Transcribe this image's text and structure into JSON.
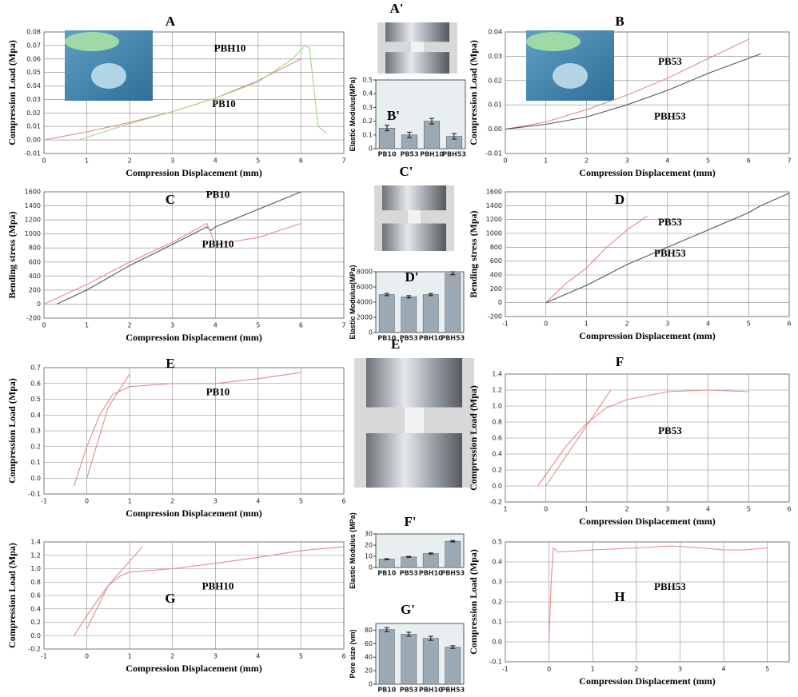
{
  "chart_data": [
    {
      "type": "line",
      "title": "A",
      "xlabel": "Compression Displacement (mm)",
      "ylabel": "Compression Load (Mpa)",
      "xlim": [
        0,
        7
      ],
      "xticks": [
        0,
        1,
        2,
        3,
        4,
        5,
        6,
        7
      ],
      "ylim": [
        -0.01,
        0.08
      ],
      "yticks": [
        -0.01,
        {
          "value": 0,
          "label": "0.00"
        },
        0.01,
        0.02,
        0.03,
        0.04,
        0.05,
        0.06,
        0.07,
        0.08
      ],
      "grid": true,
      "annotations": [
        "PBH10",
        "PB10"
      ],
      "series": [
        {
          "color": "#e58a8a",
          "x": [
            0,
            1,
            2,
            3,
            4,
            5,
            6
          ],
          "values": [
            0,
            0.006,
            0.013,
            0.021,
            0.031,
            0.044,
            0.06
          ]
        },
        {
          "color": "#9fd58f",
          "x": [
            0.8,
            2,
            3,
            4,
            5,
            5.8,
            6.1,
            6.2,
            6.4,
            6.6
          ],
          "values": [
            0,
            0.012,
            0.021,
            0.031,
            0.043,
            0.06,
            0.07,
            0.068,
            0.01,
            0.005
          ]
        }
      ]
    },
    {
      "type": "image",
      "title": "A'"
    },
    {
      "type": "line",
      "title": "B",
      "xlabel": "Compression Displacement (mm)",
      "ylabel": "Compression Load (Mpa)",
      "xlim": [
        0,
        7
      ],
      "xticks": [
        0,
        1,
        2,
        3,
        4,
        5,
        6,
        7
      ],
      "ylim": [
        -0.01,
        0.04
      ],
      "yticks": [
        -0.01,
        {
          "value": 0,
          "label": "0.00"
        },
        0.01,
        0.02,
        0.03,
        0.04
      ],
      "grid": true,
      "annotations": [
        "PB53",
        "PBH53"
      ],
      "series": [
        {
          "color": "#e58a8a",
          "x": [
            0,
            1,
            2,
            3,
            4,
            5,
            6
          ],
          "values": [
            0,
            0.003,
            0.008,
            0.014,
            0.021,
            0.029,
            0.037
          ]
        },
        {
          "color": "#555555",
          "x": [
            0,
            1,
            2,
            3,
            4,
            5,
            6.3
          ],
          "values": [
            0,
            0.002,
            0.005,
            0.01,
            0.016,
            0.023,
            0.031
          ]
        }
      ]
    },
    {
      "type": "bar",
      "title": "B'",
      "ylabel": "Elastic Modulus(MPa)",
      "categories": [
        "PB10",
        "PB53",
        "PBH10",
        "PBH53"
      ],
      "values": [
        0.15,
        0.1,
        0.2,
        0.09
      ],
      "errors": [
        0.02,
        0.02,
        0.02,
        0.02
      ],
      "color": "#9aa9b3",
      "ylim": [
        0,
        0.5
      ],
      "yticks": [
        0,
        0.1,
        0.2,
        0.3,
        0.4,
        0.5
      ]
    },
    {
      "type": "line",
      "title": "C",
      "xlabel": "Compression Displacement (mm)",
      "ylabel": "Bending stress (Mpa)",
      "xlim": [
        0,
        7
      ],
      "xticks": [
        0,
        1,
        2,
        3,
        4,
        5,
        6,
        7
      ],
      "ylim": [
        -200,
        1600
      ],
      "yticks": [
        -200,
        0,
        200,
        400,
        600,
        800,
        1000,
        1200,
        1400,
        1600
      ],
      "grid": true,
      "annotations": [
        "PB10",
        "PBH10"
      ],
      "series": [
        {
          "color": "#555555",
          "x": [
            0.3,
            1,
            2,
            3,
            3.8,
            3.9,
            4,
            5,
            6
          ],
          "values": [
            0,
            200,
            550,
            850,
            1100,
            1050,
            1100,
            1350,
            1600
          ]
        },
        {
          "color": "#e58a8a",
          "x": [
            0,
            1,
            2,
            3,
            3.8,
            4,
            5,
            6
          ],
          "values": [
            0,
            280,
            600,
            880,
            1150,
            850,
            950,
            1150
          ]
        }
      ]
    },
    {
      "type": "image",
      "title": "C'"
    },
    {
      "type": "line",
      "title": "D",
      "xlabel": "Compression Displacement (mm)",
      "ylabel": "Bending stress (Mpa)",
      "xlim": [
        -1,
        6
      ],
      "xticks": [
        -1,
        0,
        1,
        2,
        3,
        4,
        5,
        6
      ],
      "ylim": [
        -200,
        1600
      ],
      "yticks": [
        -200,
        0,
        200,
        400,
        600,
        800,
        1000,
        1200,
        1400,
        1600
      ],
      "grid": true,
      "annotations": [
        "PB53",
        "PBH53"
      ],
      "series": [
        {
          "color": "#e58a8a",
          "x": [
            0,
            0.5,
            1,
            1.5,
            2,
            2.5
          ],
          "values": [
            0,
            280,
            500,
            800,
            1050,
            1250
          ]
        },
        {
          "color": "#555555",
          "x": [
            0,
            1,
            2,
            3,
            4,
            5,
            5.3,
            6
          ],
          "values": [
            0,
            250,
            550,
            800,
            1050,
            1300,
            1400,
            1580
          ]
        }
      ]
    },
    {
      "type": "bar",
      "title": "D'",
      "ylabel": "Elastic Modulus(MPa)",
      "categories": [
        "PB10",
        "PB53",
        "PBH10",
        "PBH53"
      ],
      "values": [
        5000,
        4700,
        5000,
        7800
      ],
      "errors": [
        150,
        150,
        150,
        200
      ],
      "color": "#9aa9b3",
      "ylim": [
        0,
        8000
      ],
      "yticks": [
        0,
        2000,
        4000,
        6000,
        8000
      ]
    },
    {
      "type": "line",
      "title": "E",
      "xlabel": "Compression Displacement (mm)",
      "ylabel": "Compression Load (Mpa)",
      "xlim": [
        -1,
        6
      ],
      "xticks": [
        -1,
        0,
        1,
        2,
        3,
        4,
        5,
        6
      ],
      "ylim": [
        -0.1,
        0.7
      ],
      "yticks": [
        -0.1,
        {
          "value": 0,
          "label": "0.0"
        },
        0.1,
        0.2,
        0.3,
        0.4,
        0.5,
        0.6,
        0.7
      ],
      "grid": true,
      "annotations": [
        "PB10"
      ],
      "series": [
        {
          "color": "#e58a8a",
          "x": [
            -0.3,
            0,
            0.3,
            0.6,
            1,
            2,
            3,
            4,
            5
          ],
          "values": [
            -0.05,
            0.2,
            0.4,
            0.53,
            0.58,
            0.6,
            0.6,
            0.63,
            0.67
          ]
        },
        {
          "color": "#e58a8a",
          "x": [
            0,
            0.5,
            1
          ],
          "values": [
            0,
            0.45,
            0.66
          ]
        }
      ]
    },
    {
      "type": "image",
      "title": "E'"
    },
    {
      "type": "line",
      "title": "F",
      "xlabel": "Compression Displacement (mm)",
      "ylabel": "Compression Load (Mpa)",
      "xlim": [
        -1,
        6
      ],
      "xticks": [
        {
          "value": -1,
          "label": "1"
        },
        0,
        1,
        2,
        3,
        4,
        5,
        6
      ],
      "ylim": [
        -0.2,
        1.4
      ],
      "yticks": [
        -0.2,
        {
          "value": 0,
          "label": "0.0"
        },
        0.2,
        0.4,
        0.6,
        0.8,
        {
          "value": 1,
          "label": "1.0"
        },
        1.2,
        1.4
      ],
      "grid": true,
      "annotations": [
        "PB53"
      ],
      "series": [
        {
          "color": "#e58a8a",
          "x": [
            -0.2,
            0.5,
            1,
            1.5,
            2,
            3,
            4,
            5
          ],
          "values": [
            0,
            0.5,
            0.78,
            0.98,
            1.08,
            1.18,
            1.2,
            1.18
          ]
        },
        {
          "color": "#e58a8a",
          "x": [
            0,
            1,
            1.6
          ],
          "values": [
            0,
            0.75,
            1.2
          ]
        }
      ]
    },
    {
      "type": "bar",
      "title": "F'",
      "ylabel": "Elastic Modulus (MPa)",
      "categories": [
        "PB10",
        "PB53",
        "PBH10",
        "PBH53"
      ],
      "values": [
        7.5,
        9.5,
        12.5,
        23.5
      ],
      "errors": [
        0.4,
        0.4,
        0.5,
        0.6
      ],
      "color": "#9aa9b3",
      "ylim": [
        0,
        30
      ],
      "yticks": [
        0,
        10,
        20,
        30
      ]
    },
    {
      "type": "line",
      "title": "G",
      "xlabel": "Compression Displacement (mm)",
      "ylabel": "Compression Load (Mpa)",
      "xlim": [
        -1,
        6
      ],
      "xticks": [
        -1,
        0,
        1,
        2,
        3,
        4,
        5,
        6
      ],
      "ylim": [
        -0.2,
        1.4
      ],
      "yticks": [
        -0.2,
        {
          "value": 0,
          "label": "0.0"
        },
        0.2,
        0.4,
        0.6,
        0.8,
        {
          "value": 1,
          "label": "1.0"
        },
        1.2,
        1.4
      ],
      "grid": true,
      "annotations": [
        "PBH10"
      ],
      "series": [
        {
          "color": "#e58a8a",
          "x": [
            -0.3,
            0,
            0.5,
            0.8,
            1,
            2,
            3,
            4,
            5,
            6
          ],
          "values": [
            0,
            0.3,
            0.75,
            0.9,
            0.95,
            1,
            1.08,
            1.17,
            1.27,
            1.33
          ]
        },
        {
          "color": "#e58a8a",
          "x": [
            0,
            0.5,
            1.3
          ],
          "values": [
            0.1,
            0.75,
            1.33
          ]
        }
      ]
    },
    {
      "type": "bar",
      "title": "G'",
      "ylabel": "Pore size (vm)",
      "categories": [
        "PB10",
        "PB53",
        "PBH10",
        "PBH53"
      ],
      "values": [
        81,
        74,
        68,
        55
      ],
      "errors": [
        3,
        3,
        3,
        2
      ],
      "color": "#9aa9b3",
      "ylim": [
        0,
        90
      ],
      "yticks": [
        0,
        20,
        40,
        60,
        80
      ]
    },
    {
      "type": "line",
      "title": "H",
      "xlabel": "Compression Displacement (mm)",
      "ylabel": "Compression Load (Mpa)",
      "xlim": [
        -1,
        5.5
      ],
      "xticks": [
        -1,
        0,
        1,
        2,
        3,
        4,
        5
      ],
      "ylim": [
        -0.1,
        0.5
      ],
      "yticks": [
        -0.1,
        {
          "value": 0,
          "label": "0.0"
        },
        0.1,
        0.2,
        0.3,
        0.4,
        0.5
      ],
      "grid": true,
      "annotations": [
        "PBH53"
      ],
      "series": [
        {
          "color": "#e58a8a",
          "x": [
            0,
            0.05,
            0.1,
            0.2,
            1,
            2,
            2.8,
            3.5,
            4,
            4.5,
            5
          ],
          "values": [
            0,
            0.3,
            0.47,
            0.45,
            0.46,
            0.47,
            0.48,
            0.47,
            0.46,
            0.46,
            0.47
          ]
        }
      ]
    }
  ]
}
